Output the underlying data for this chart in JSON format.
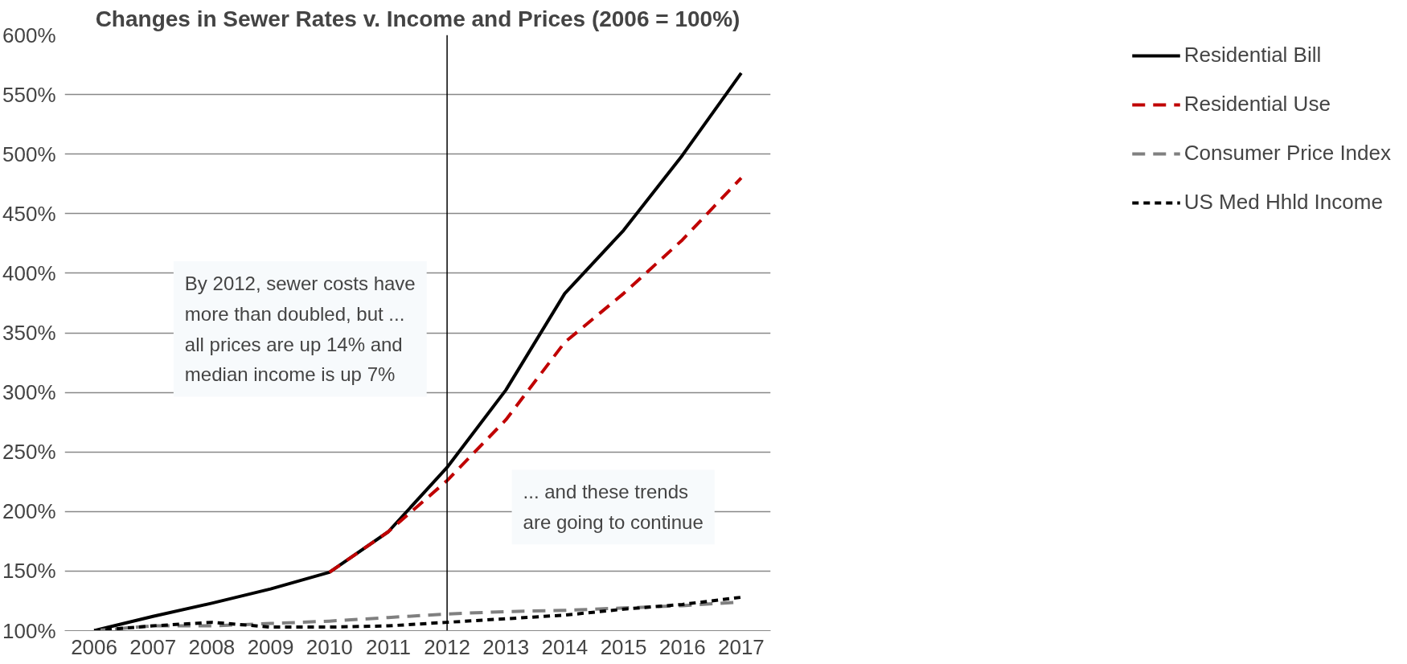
{
  "chart_data": {
    "type": "line",
    "title": "Changes in Sewer Rates v. Income and Prices (2006 = 100%)",
    "categories": [
      "2006",
      "2007",
      "2008",
      "2009",
      "2010",
      "2011",
      "2012",
      "2013",
      "2014",
      "2015",
      "2016",
      "2017"
    ],
    "series": [
      {
        "name": "Residential Bill",
        "color": "#000000",
        "line_style": "solid",
        "values": [
          100,
          112,
          123,
          135,
          149,
          183,
          237,
          302,
          383,
          436,
          499,
          568
        ]
      },
      {
        "name": "Residential Use",
        "color": "#c00000",
        "line_style": "dashed",
        "values": [
          null,
          null,
          null,
          null,
          149,
          183,
          226,
          277,
          342,
          383,
          428,
          480
        ]
      },
      {
        "name": "Consumer Price Index",
        "color": "#808080",
        "line_style": "dashed",
        "values": [
          100,
          104,
          104,
          106,
          108,
          111,
          114,
          116,
          117,
          119,
          121,
          124
        ]
      },
      {
        "name": "US Med Hhld Income",
        "color": "#000000",
        "line_style": "dotted",
        "values": [
          100,
          104,
          107,
          103,
          103,
          104,
          107,
          110,
          113,
          118,
          122,
          128
        ]
      }
    ],
    "ylim": [
      100,
      600
    ],
    "yticks": [
      {
        "value": 100,
        "label": "100%"
      },
      {
        "value": 150,
        "label": "150%"
      },
      {
        "value": 200,
        "label": "200%"
      },
      {
        "value": 250,
        "label": "250%"
      },
      {
        "value": 300,
        "label": "300%"
      },
      {
        "value": 350,
        "label": "350%"
      },
      {
        "value": 400,
        "label": "400%"
      },
      {
        "value": 450,
        "label": "450%"
      },
      {
        "value": 500,
        "label": "500%"
      },
      {
        "value": 550,
        "label": "550%"
      },
      {
        "value": 600,
        "label": "600%"
      }
    ],
    "grid": "y",
    "legend": "right",
    "marker": "none",
    "ref_lines": [
      {
        "axis": "x",
        "value": "2012",
        "color": "#000000"
      }
    ],
    "annotations": [
      "By 2012, sewer costs have\nmore than doubled, but ...\nall prices are up 14% and\nmedian income is up 7%",
      "... and these trends\nare going to continue"
    ]
  }
}
